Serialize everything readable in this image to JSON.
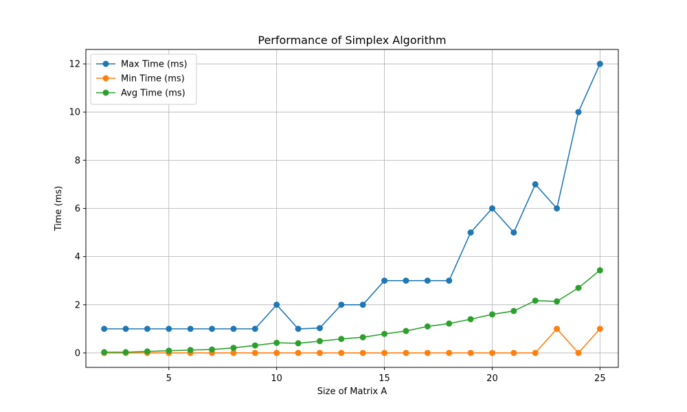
{
  "chart_data": {
    "type": "line",
    "title": "Performance of Simplex Algorithm",
    "xlabel": "Size of Matrix A",
    "ylabel": "Time (ms)",
    "xlim": [
      1.15,
      25.85
    ],
    "ylim": [
      -0.6,
      12.6
    ],
    "xticks": [
      5,
      10,
      15,
      20,
      25
    ],
    "yticks": [
      0,
      2,
      4,
      6,
      8,
      10,
      12
    ],
    "grid": true,
    "legend_position": "top-left",
    "x": [
      2,
      3,
      4,
      5,
      6,
      7,
      8,
      9,
      10,
      11,
      12,
      13,
      14,
      15,
      16,
      17,
      18,
      19,
      20,
      21,
      22,
      23,
      24,
      25
    ],
    "series": [
      {
        "name": "Max Time (ms)",
        "color": "#1f77b4",
        "values": [
          1,
          1,
          1,
          1,
          1,
          1,
          1,
          1,
          2,
          1,
          1.03,
          2,
          2,
          3,
          3,
          3,
          3,
          5,
          6,
          5,
          7,
          6,
          10,
          12
        ]
      },
      {
        "name": "Min Time (ms)",
        "color": "#ff7f0e",
        "values": [
          0,
          0,
          0,
          0,
          0,
          0,
          0,
          0,
          0,
          0,
          0,
          0,
          0,
          0,
          0,
          0,
          0,
          0,
          0,
          0,
          0,
          1,
          0,
          1
        ]
      },
      {
        "name": "Avg Time (ms)",
        "color": "#2ca02c",
        "values": [
          0.03,
          0.03,
          0.06,
          0.09,
          0.12,
          0.14,
          0.21,
          0.31,
          0.42,
          0.4,
          0.49,
          0.58,
          0.65,
          0.79,
          0.91,
          1.1,
          1.22,
          1.4,
          1.6,
          1.74,
          2.17,
          2.14,
          2.7,
          3.43
        ]
      }
    ]
  }
}
